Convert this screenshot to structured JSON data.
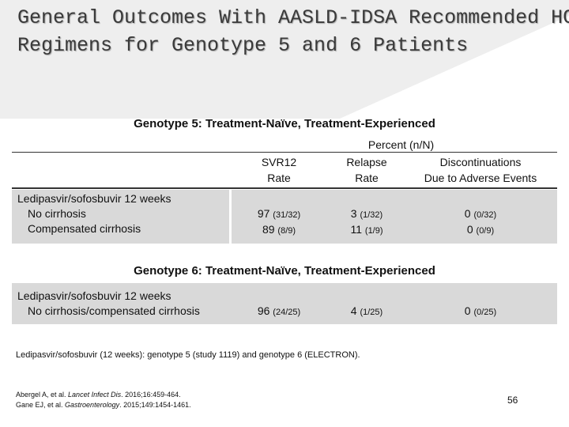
{
  "title": {
    "lines": [
      "General Outcomes With AASLD-IDSA Recommended HCV",
      "Regimens for Genotype 5 and 6 Patients"
    ]
  },
  "table": {
    "group_header": "Percent (n/N)",
    "columns": [
      "SVR12\nRate",
      "Relapse\nRate",
      "Discontinuations\nDue to Adverse Events"
    ],
    "sections": [
      {
        "heading": "Genotype 5: Treatment-Naïve, Treatment-Experienced",
        "regimen": "Ledipasvir/sofosbuvir 12 weeks",
        "subgroups": [
          "No cirrhosis",
          "Compensated cirrhosis"
        ],
        "cells": [
          [
            [
              "97",
              "(31/32)"
            ],
            [
              "3",
              "(1/32)"
            ],
            [
              "0",
              "(0/32)"
            ]
          ],
          [
            [
              "89",
              "(8/9)"
            ],
            [
              "11",
              "(1/9)"
            ],
            [
              "0",
              "(0/9)"
            ]
          ]
        ]
      },
      {
        "heading": "Genotype 6: Treatment-Naïve, Treatment-Experienced",
        "regimen": "Ledipasvir/sofosbuvir 12 weeks",
        "subgroups": [
          "No cirrhosis/compensated cirrhosis"
        ],
        "cells": [
          [
            [
              "96",
              "(24/25)"
            ],
            [
              "4",
              "(1/25)"
            ],
            [
              "0",
              "(0/25)"
            ]
          ]
        ]
      }
    ]
  },
  "footnote": "Ledipasvir/sofosbuvir (12 weeks): genotype 5 (study 1119) and genotype 6 (ELECTRON).",
  "references": [
    [
      "Abergel A, et al. ",
      "Lancet Infect Dis",
      ". 2016;16:459-464."
    ],
    [
      "Gane EJ, et al. ",
      "Gastroenterology",
      ". 2015;149:1454-1461."
    ]
  ],
  "page_number": "56"
}
